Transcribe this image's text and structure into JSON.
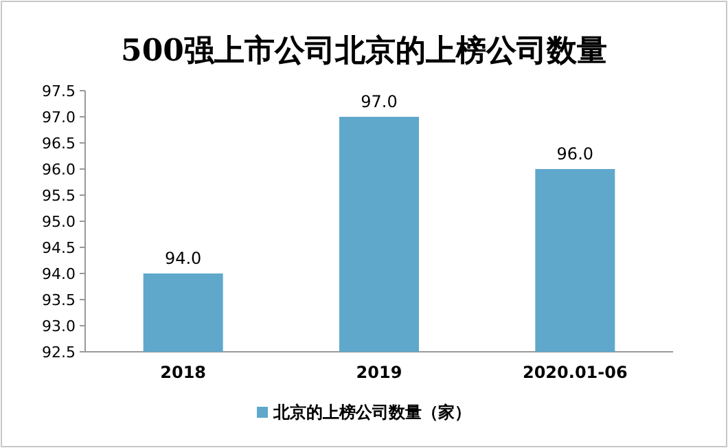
{
  "chart_data": {
    "type": "bar",
    "title": "500强上市公司北京的上榜公司数量",
    "categories": [
      "2018",
      "2019",
      "2020.01-06"
    ],
    "series": [
      {
        "name": "北京的上榜公司数量（家）",
        "color": "#5fa8cc",
        "values": [
          94,
          97,
          96
        ],
        "value_labels": [
          "94.0",
          "97.0",
          "96.0"
        ]
      }
    ],
    "ylim": [
      92.5,
      97.5
    ],
    "yticks": [
      92.5,
      {
        "value": 93,
        "label": "93.0"
      },
      93.5,
      {
        "value": 94,
        "label": "94.0"
      },
      94.5,
      {
        "value": 95,
        "label": "95.0"
      },
      95.5,
      {
        "value": 96,
        "label": "96.0"
      },
      96.5,
      {
        "value": 97,
        "label": "97.0"
      },
      97.5
    ],
    "grid": false,
    "legend": "bottom"
  }
}
